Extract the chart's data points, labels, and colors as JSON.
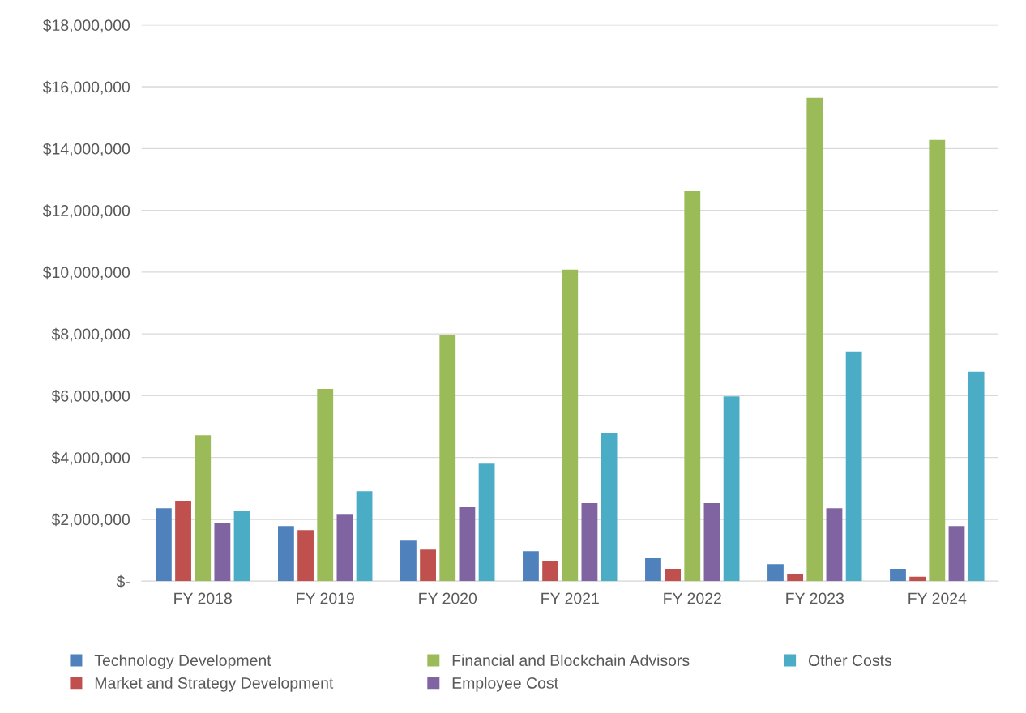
{
  "chart_data": {
    "type": "bar",
    "categories": [
      "FY 2018",
      "FY 2019",
      "FY 2020",
      "FY 2021",
      "FY 2022",
      "FY 2023",
      "FY 2024"
    ],
    "series": [
      {
        "name": "Technology Development",
        "color": "#4f81bd",
        "values": [
          2360000,
          1780000,
          1310000,
          970000,
          740000,
          550000,
          400000
        ]
      },
      {
        "name": "Market and Strategy Development",
        "color": "#c0504d",
        "values": [
          2600000,
          1650000,
          1020000,
          660000,
          400000,
          240000,
          140000
        ]
      },
      {
        "name": "Financial and Blockchain Advisors",
        "color": "#9bbb59",
        "values": [
          4720000,
          6220000,
          7980000,
          10080000,
          12620000,
          15640000,
          14280000
        ]
      },
      {
        "name": "Employee Cost",
        "color": "#8064a2",
        "values": [
          1890000,
          2150000,
          2390000,
          2520000,
          2520000,
          2360000,
          1780000
        ]
      },
      {
        "name": "Other Costs",
        "color": "#4bacc6",
        "values": [
          2260000,
          2910000,
          3800000,
          4780000,
          5980000,
          7430000,
          6780000
        ]
      }
    ],
    "ylim": [
      0,
      18000000
    ],
    "yticks": [
      {
        "value": 0,
        "label": "$-"
      },
      {
        "value": 2000000,
        "label": "$2,000,000"
      },
      {
        "value": 4000000,
        "label": "$4,000,000"
      },
      {
        "value": 6000000,
        "label": "$6,000,000"
      },
      {
        "value": 8000000,
        "label": "$8,000,000"
      },
      {
        "value": 10000000,
        "label": "$10,000,000"
      },
      {
        "value": 12000000,
        "label": "$12,000,000"
      },
      {
        "value": 14000000,
        "label": "$14,000,000"
      },
      {
        "value": 16000000,
        "label": "$16,000,000"
      },
      {
        "value": 18000000,
        "label": "$18,000,000"
      }
    ],
    "grid": "y",
    "legend": "bottom"
  }
}
